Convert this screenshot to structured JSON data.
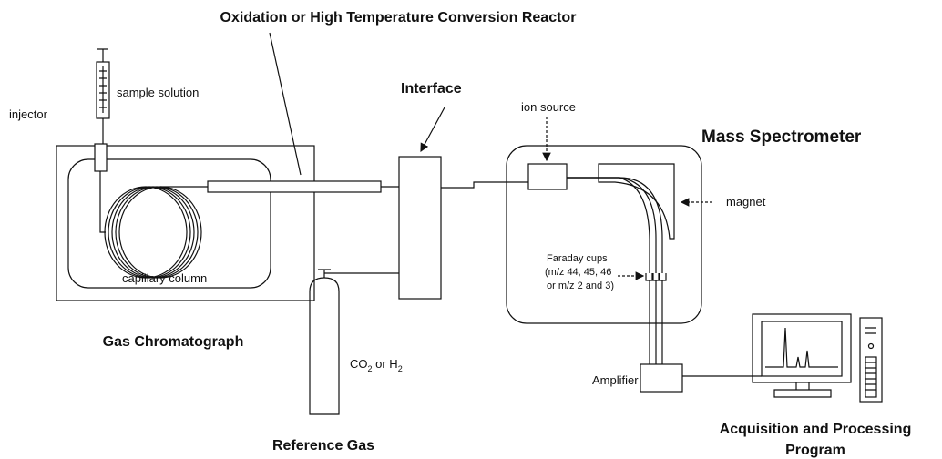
{
  "labels": {
    "reactor": "Oxidation or High Temperature Conversion Reactor",
    "sample_solution": "sample solution",
    "injector": "injector",
    "interface": "Interface",
    "ion_source": "ion source",
    "mass_spectrometer": "Mass Spectrometer",
    "magnet": "magnet",
    "faraday_cups": [
      "Faraday cups",
      "(m/z 44, 45, 46",
      "or m/z 2 and 3)"
    ],
    "capillary_column": "capillary column",
    "gas_chromatograph": "Gas Chromatograph",
    "gas_formula": [
      "CO",
      "2",
      " or H",
      "2"
    ],
    "amplifier": "Amplifier",
    "reference_gas": "Reference Gas",
    "acquisition": [
      "Acquisition and Processing",
      "Program"
    ]
  }
}
